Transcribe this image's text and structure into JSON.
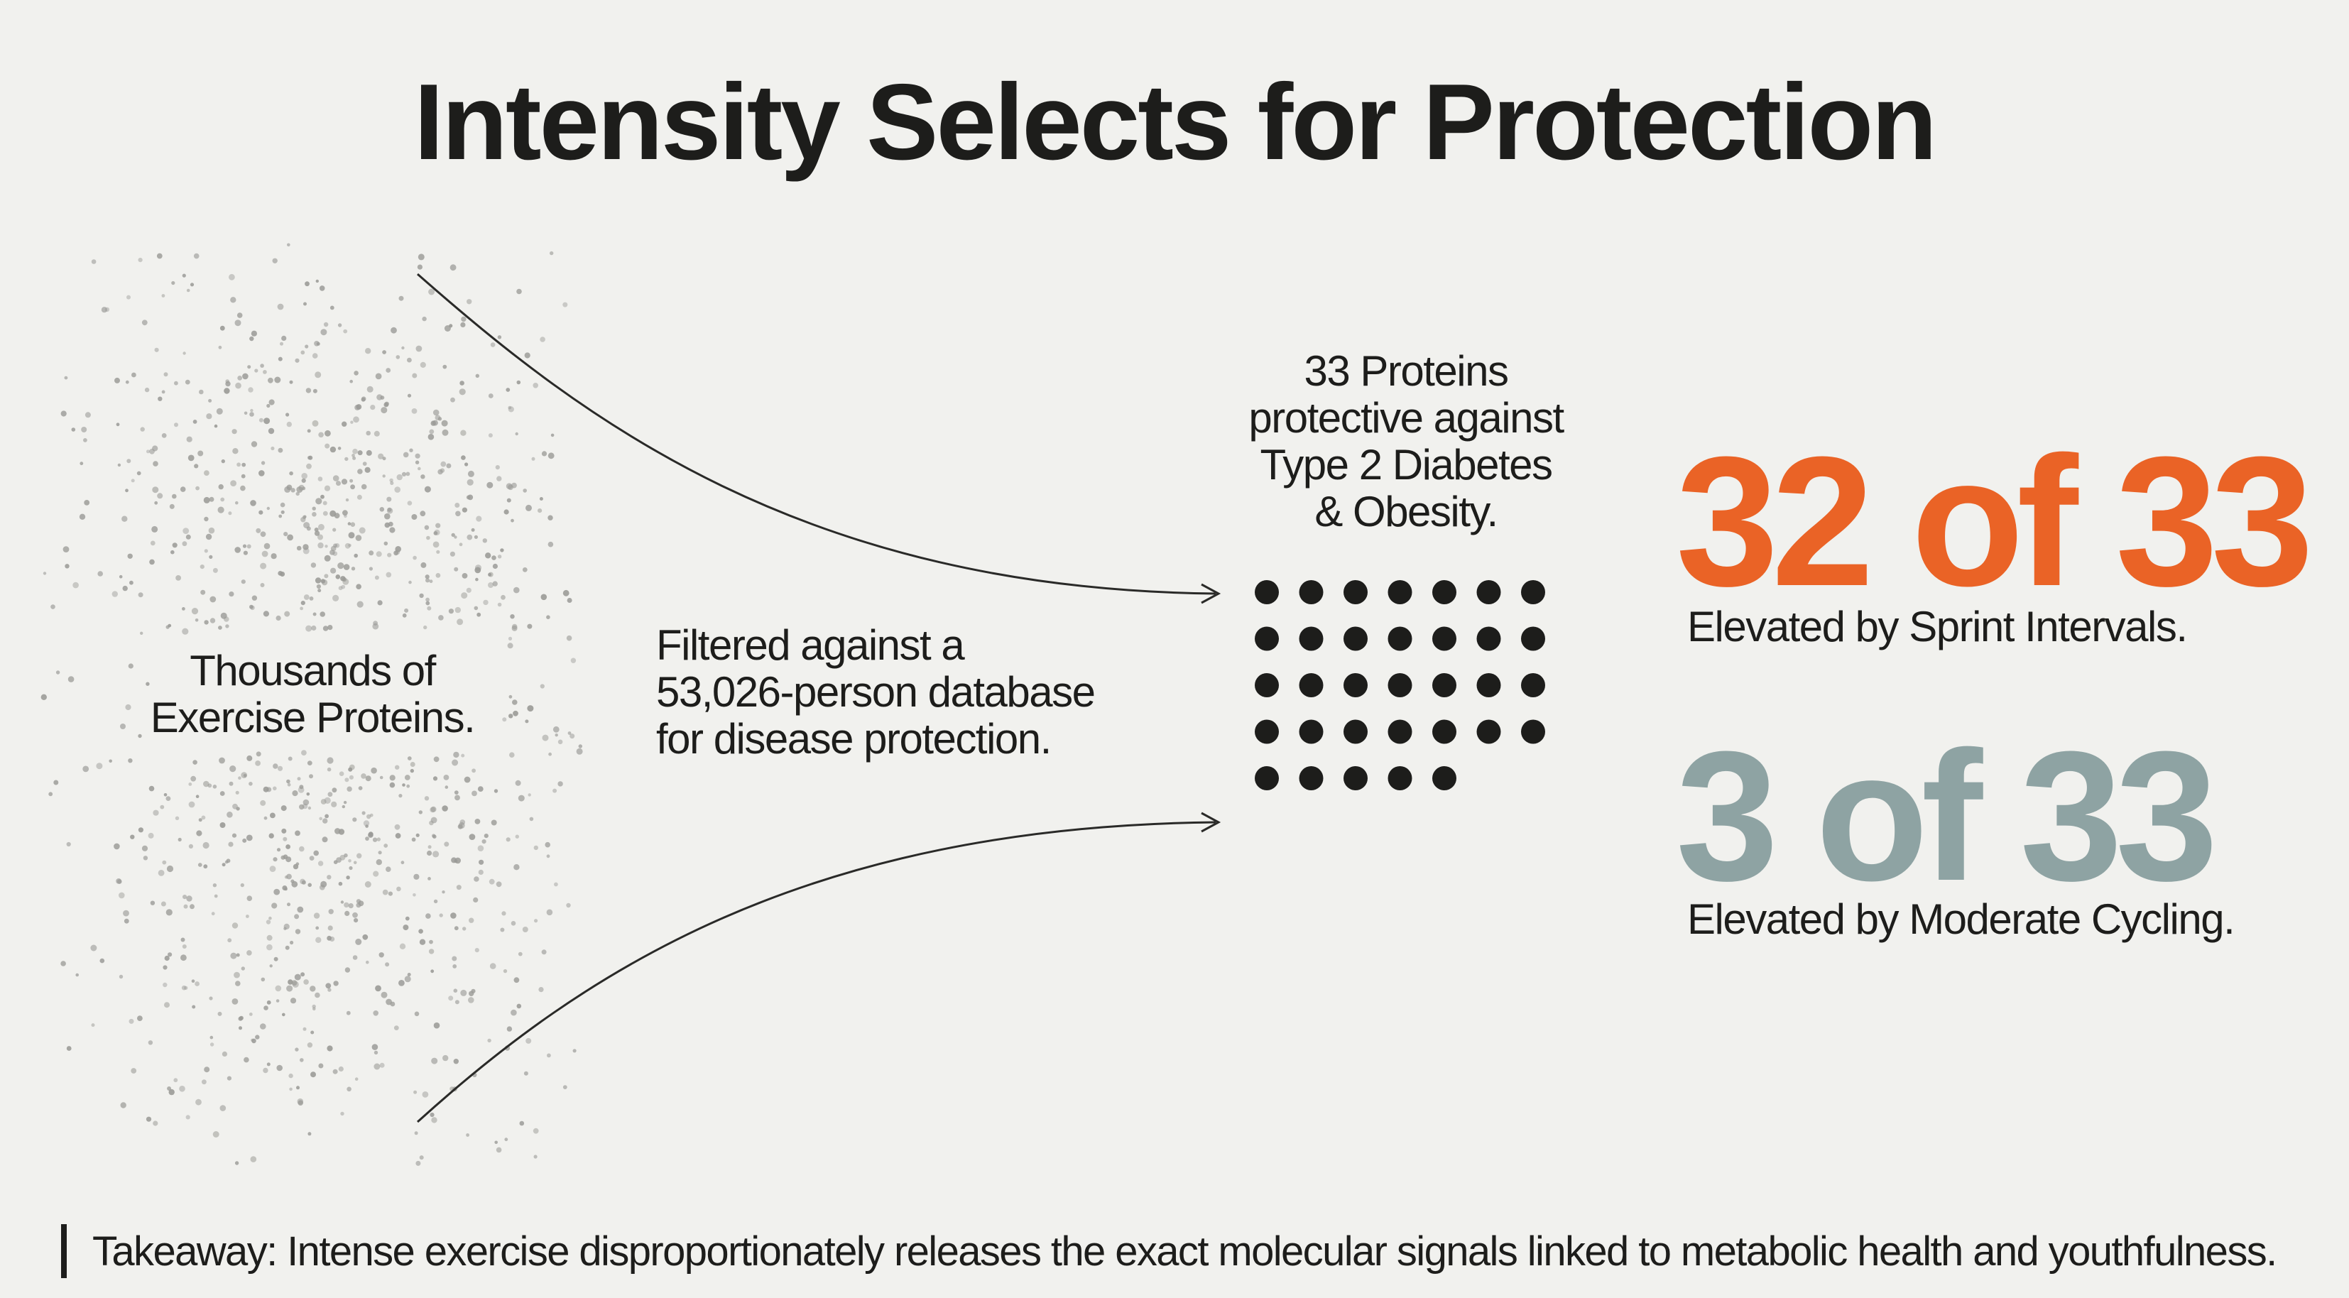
{
  "title": "Intensity Selects for Protection",
  "source": {
    "line1": "Thousands of",
    "line2": "Exercise Proteins."
  },
  "filter": {
    "line1": "Filtered against a",
    "line2": "53,026-person database",
    "line3": "for disease protection."
  },
  "result": {
    "line1": "33 Proteins",
    "line2": "protective against",
    "line3": "Type 2 Diabetes",
    "line4": "& Obesity.",
    "dot_count": 33,
    "dot_color": "#1d1d1b"
  },
  "stats": {
    "sprint": {
      "value": "32 of 33",
      "caption": "Elevated by Sprint Intervals.",
      "color": "#ea6326"
    },
    "cycling": {
      "value": "3 of 33",
      "caption": "Elevated by Moderate Cycling.",
      "color": "#8ea3a3"
    }
  },
  "takeaway": "Takeaway: Intense exercise disproportionately releases the exact molecular signals linked to metabolic health and youthfulness.",
  "colors": {
    "background": "#f1f1ee",
    "text": "#1d1d1b",
    "scatter": "#9a9a96"
  }
}
